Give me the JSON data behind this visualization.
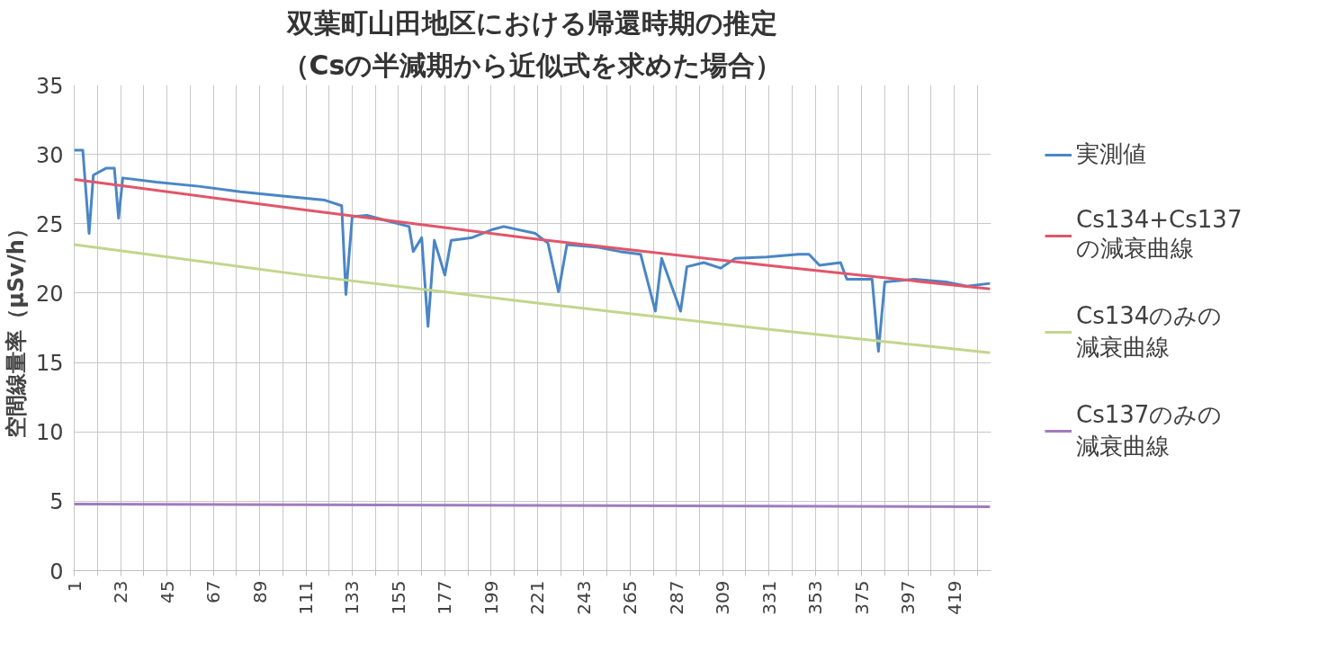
{
  "chart_data": {
    "type": "line",
    "title": "双葉町山田地区における帰還時期の推定",
    "subtitle": "（Csの半減期から近似式を求めた場合）",
    "ylabel": "空間線量率（μSv/h）",
    "xlim": [
      0.5,
      436.5
    ],
    "ylim": [
      0,
      35
    ],
    "yticks": [
      0,
      5,
      10,
      15,
      20,
      25,
      30,
      35
    ],
    "xticks": [
      1,
      {
        "value": 12,
        "label": null
      },
      23,
      {
        "value": 34,
        "label": null
      },
      45,
      {
        "value": 56,
        "label": null
      },
      67,
      {
        "value": 78,
        "label": null
      },
      89,
      {
        "value": 100,
        "label": null
      },
      111,
      {
        "value": 122,
        "label": null
      },
      133,
      {
        "value": 144,
        "label": null
      },
      155,
      {
        "value": 166,
        "label": null
      },
      177,
      {
        "value": 188,
        "label": null
      },
      199,
      {
        "value": 210,
        "label": null
      },
      221,
      {
        "value": 232,
        "label": null
      },
      243,
      {
        "value": 254,
        "label": null
      },
      265,
      {
        "value": 276,
        "label": null
      },
      287,
      {
        "value": 298,
        "label": null
      },
      309,
      {
        "value": 320,
        "label": null
      },
      331,
      {
        "value": 342,
        "label": null
      },
      353,
      {
        "value": 364,
        "label": null
      },
      375,
      {
        "value": 386,
        "label": null
      },
      397,
      {
        "value": 408,
        "label": null
      },
      419,
      {
        "value": 430,
        "label": null
      }
    ],
    "grid": true,
    "legend": "right",
    "line_style": "solid",
    "series": [
      {
        "name": "実測値",
        "color": "#4a86c5",
        "x": [
          1,
          5,
          8,
          10,
          16,
          20,
          22,
          24,
          40,
          60,
          80,
          100,
          120,
          128,
          130,
          133,
          140,
          150,
          160,
          162,
          166,
          169,
          172,
          177,
          180,
          190,
          200,
          205,
          220,
          226,
          231,
          235,
          250,
          260,
          270,
          277,
          280,
          289,
          292,
          300,
          308,
          315,
          330,
          345,
          350,
          355,
          365,
          368,
          380,
          383,
          386,
          400,
          415,
          425,
          436
        ],
        "values": [
          30.3,
          30.3,
          24.3,
          28.5,
          29.0,
          29.0,
          25.4,
          28.3,
          28.0,
          27.7,
          27.3,
          27.0,
          26.7,
          26.3,
          19.9,
          25.5,
          25.6,
          25.2,
          24.8,
          23.0,
          24.0,
          17.6,
          23.8,
          21.3,
          23.8,
          24.0,
          24.6,
          24.8,
          24.3,
          23.6,
          20.1,
          23.5,
          23.3,
          23.0,
          22.8,
          18.7,
          22.5,
          18.7,
          21.9,
          22.2,
          21.8,
          22.5,
          22.6,
          22.8,
          22.8,
          22.0,
          22.2,
          21.0,
          21.0,
          15.8,
          20.8,
          21.0,
          20.8,
          20.5,
          20.7
        ]
      },
      {
        "name": "Cs134+Cs137の減衰曲線",
        "color": "#e0566a",
        "x": [
          1,
          110,
          220,
          330,
          436
        ],
        "values": [
          28.2,
          26.0,
          23.9,
          22.0,
          20.3
        ]
      },
      {
        "name": "Cs134のみの減衰曲線",
        "color": "#c2d68c",
        "x": [
          1,
          110,
          220,
          330,
          436
        ],
        "values": [
          23.5,
          21.3,
          19.3,
          17.4,
          15.7
        ]
      },
      {
        "name": "Cs137のみの減衰曲線",
        "color": "#a07cbf",
        "x": [
          1,
          436
        ],
        "values": [
          4.8,
          4.6
        ]
      }
    ]
  }
}
